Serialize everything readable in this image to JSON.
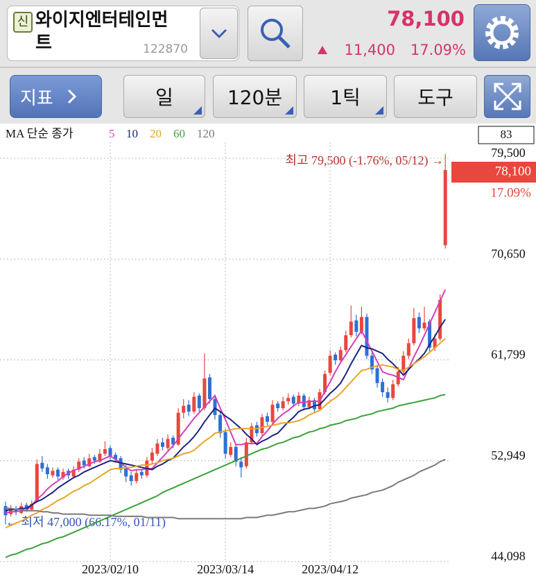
{
  "header": {
    "badge": "신",
    "name": "와이지엔터테인먼트",
    "code": "122870",
    "price": "78,100",
    "change": "11,400",
    "change_rate": "17.09%"
  },
  "toolbar": {
    "indicator": "지표",
    "period": "일",
    "minute": "120분",
    "tick": "1틱",
    "tools": "도구"
  },
  "chart_data": {
    "type": "candlestick",
    "legend_title": "MA 단순 종가",
    "high_annotation": "최고 79,500 (-1.76%, 05/12) →",
    "low_annotation": "← 최저 47,000 (66.17%, 01/11)",
    "top_box_label": "83",
    "current_price_label": "78,100",
    "current_change_label": "17.09%",
    "up_color": "#e8473e",
    "down_color": "#2e6fd6",
    "ylim": [
      44098,
      79500
    ],
    "yticks": [
      {
        "value": 44098,
        "label": "44,098"
      },
      {
        "value": 52949,
        "label": "52,949"
      },
      {
        "value": 61799,
        "label": "61,799"
      },
      {
        "value": 70650,
        "label": "70,650"
      },
      {
        "value": 79500,
        "label": "79,500"
      }
    ],
    "grid": true,
    "categories": [
      null,
      null,
      null,
      null,
      null,
      null,
      null,
      null,
      null,
      null,
      null,
      null,
      null,
      null,
      null,
      null,
      null,
      null,
      null,
      null,
      "2023/02/10",
      null,
      null,
      null,
      null,
      null,
      null,
      null,
      null,
      null,
      null,
      null,
      null,
      null,
      null,
      null,
      null,
      null,
      null,
      null,
      null,
      null,
      "2023/03/14",
      null,
      null,
      null,
      null,
      null,
      null,
      null,
      null,
      null,
      null,
      null,
      null,
      null,
      null,
      null,
      null,
      null,
      null,
      null,
      "2023/04/12",
      null,
      null,
      null,
      null,
      null,
      null,
      null,
      null,
      null,
      null,
      null,
      null,
      null,
      null,
      null,
      null,
      null,
      null,
      null,
      null,
      null,
      null
    ],
    "open": [
      48600,
      47900,
      48300,
      48000,
      48700,
      48300,
      49000,
      52400,
      52000,
      51300,
      51800,
      51100,
      51700,
      51200,
      51800,
      52600,
      52100,
      52900,
      52500,
      53200,
      53700,
      53100,
      52800,
      51900,
      51300,
      50800,
      51600,
      51300,
      52600,
      53200,
      54200,
      53700,
      54600,
      54000,
      56800,
      57500,
      56900,
      58300,
      57200,
      59900,
      58000,
      56600,
      55100,
      53100,
      53800,
      52500,
      52100,
      54200,
      55700,
      55000,
      56500,
      56000,
      57600,
      57200,
      57800,
      58200,
      57600,
      58300,
      57300,
      57900,
      57100,
      58600,
      60300,
      61900,
      61400,
      62300,
      63600,
      64900,
      63900,
      65200,
      61800,
      60700,
      59500,
      58600,
      58100,
      59300,
      60400,
      61800,
      62900,
      65200,
      64200,
      64800,
      62500,
      63300,
      71500
    ],
    "high": [
      49000,
      48700,
      48600,
      48900,
      48900,
      49100,
      52700,
      53000,
      52300,
      52000,
      52000,
      51900,
      51900,
      52100,
      52800,
      52900,
      53200,
      53100,
      53600,
      54300,
      53900,
      53300,
      53000,
      52200,
      51600,
      51800,
      51800,
      52900,
      53700,
      54500,
      54600,
      54900,
      54800,
      57200,
      58000,
      57900,
      58600,
      58500,
      62000,
      60200,
      58300,
      56900,
      55400,
      54200,
      54000,
      52900,
      54600,
      55900,
      56000,
      56700,
      56800,
      57900,
      57800,
      58200,
      58500,
      58400,
      58600,
      58500,
      58200,
      58100,
      58900,
      60500,
      62300,
      62100,
      62600,
      64000,
      66200,
      65400,
      66100,
      65500,
      62100,
      61000,
      59800,
      59000,
      59700,
      60800,
      62200,
      63300,
      66000,
      65600,
      66100,
      65000,
      63700,
      67200,
      79500
    ],
    "low": [
      47000,
      47700,
      47800,
      47900,
      48100,
      48200,
      48900,
      51600,
      51000,
      51100,
      50900,
      50900,
      51000,
      51000,
      51600,
      51900,
      52000,
      52300,
      52400,
      53000,
      52700,
      52400,
      51500,
      50700,
      50400,
      50600,
      51000,
      51100,
      52300,
      53000,
      53500,
      53500,
      53700,
      53900,
      56300,
      56500,
      56700,
      56900,
      57000,
      57600,
      56200,
      54600,
      52800,
      52900,
      52100,
      51100,
      51900,
      54000,
      54700,
      54800,
      55700,
      55800,
      56900,
      57000,
      57500,
      57300,
      57400,
      57000,
      57100,
      56800,
      57000,
      58400,
      60100,
      61000,
      61200,
      62100,
      63400,
      63500,
      63700,
      61500,
      60200,
      59000,
      58200,
      57700,
      57900,
      59100,
      60200,
      61500,
      62700,
      63800,
      64000,
      62100,
      62200,
      63100,
      71200
    ],
    "close": [
      47800,
      48300,
      48100,
      48600,
      48400,
      48800,
      52300,
      51900,
      51400,
      51700,
      51200,
      51600,
      51300,
      51800,
      52500,
      52200,
      52800,
      52600,
      53200,
      53600,
      53000,
      52700,
      51800,
      51200,
      50800,
      51500,
      51300,
      52600,
      53300,
      54100,
      53800,
      54500,
      54000,
      56800,
      57400,
      56900,
      58200,
      57200,
      59800,
      58000,
      56600,
      55000,
      53200,
      53800,
      52500,
      52000,
      54200,
      55600,
      55000,
      56400,
      56000,
      57500,
      57200,
      57800,
      58100,
      57600,
      58300,
      57300,
      57900,
      57100,
      58600,
      60200,
      61800,
      61400,
      62300,
      63600,
      64800,
      63900,
      65200,
      61800,
      60600,
      59400,
      58600,
      58100,
      59300,
      60400,
      61800,
      62900,
      65100,
      64200,
      64700,
      62500,
      63300,
      66700,
      78100
    ],
    "series": [
      {
        "name": "5",
        "color": "#d63eb8",
        "values": [
          48000,
          48100,
          48100,
          48200,
          48200,
          48700,
          49200,
          49600,
          50100,
          50500,
          50800,
          51200,
          51500,
          51700,
          51900,
          52100,
          52300,
          52500,
          52600,
          52800,
          53000,
          52700,
          52400,
          52000,
          51700,
          51800,
          51800,
          51900,
          51900,
          52400,
          52900,
          53400,
          53900,
          54500,
          55100,
          55700,
          56300,
          56800,
          57300,
          57800,
          58300,
          57200,
          56200,
          55100,
          54000,
          54000,
          54100,
          54100,
          54100,
          54700,
          55200,
          55800,
          56300,
          56700,
          57000,
          57400,
          57700,
          57700,
          57800,
          57800,
          57800,
          58700,
          59500,
          60400,
          61200,
          61900,
          62600,
          63300,
          64000,
          63100,
          62200,
          61300,
          60400,
          60200,
          60100,
          59900,
          59700,
          60700,
          61700,
          62600,
          63600,
          64600,
          65600,
          66600,
          67600
        ]
      },
      {
        "name": "10",
        "color": "#1a237e",
        "values": [
          48200,
          48300,
          48300,
          48400,
          48400,
          48700,
          49000,
          49200,
          49500,
          49800,
          50200,
          50500,
          50800,
          51100,
          51300,
          51600,
          51800,
          52000,
          52200,
          52400,
          52600,
          52500,
          52400,
          52300,
          52200,
          52100,
          52000,
          51900,
          51800,
          52100,
          52300,
          52600,
          52800,
          53300,
          53800,
          54200,
          54700,
          55300,
          56000,
          56600,
          57200,
          56900,
          56500,
          56200,
          55800,
          55400,
          54900,
          54500,
          54000,
          54300,
          54500,
          54800,
          55000,
          55500,
          56000,
          56400,
          56900,
          57100,
          57200,
          57400,
          57500,
          58000,
          58500,
          58900,
          59400,
          60200,
          61100,
          61900,
          62700,
          62500,
          62400,
          62200,
          62000,
          61500,
          61100,
          60600,
          60100,
          60600,
          61100,
          61500,
          62000,
          62800,
          63500,
          64300,
          65000
        ]
      },
      {
        "name": "20",
        "color": "#e8a526",
        "values": [
          46700,
          46900,
          47100,
          47300,
          47500,
          47800,
          48000,
          48300,
          48500,
          48800,
          49100,
          49300,
          49600,
          49900,
          50100,
          50400,
          50600,
          50900,
          51200,
          51500,
          51800,
          51900,
          51900,
          52000,
          52000,
          52100,
          52200,
          52200,
          52300,
          52400,
          52600,
          52700,
          52800,
          53000,
          53200,
          53300,
          53500,
          53900,
          54300,
          54600,
          55000,
          55100,
          55200,
          55300,
          55400,
          55400,
          55400,
          55400,
          55400,
          55500,
          55600,
          55700,
          55800,
          55900,
          55900,
          56000,
          56100,
          56300,
          56600,
          56800,
          57000,
          57400,
          57800,
          58100,
          58500,
          59000,
          59500,
          60000,
          60500,
          60600,
          60800,
          60900,
          61000,
          60900,
          60800,
          60600,
          60500,
          60800,
          61100,
          61400,
          61700,
          62100,
          62500,
          62900,
          63300
        ]
      },
      {
        "name": "60",
        "color": "#3aa23a",
        "values": [
          44100,
          44300,
          44400,
          44600,
          44800,
          44900,
          45100,
          45300,
          45400,
          45600,
          45800,
          45900,
          46100,
          46300,
          46500,
          46700,
          46900,
          47100,
          47300,
          47500,
          47700,
          47900,
          48100,
          48300,
          48500,
          48700,
          48900,
          49100,
          49300,
          49500,
          49800,
          50000,
          50200,
          50400,
          50600,
          50800,
          51000,
          51200,
          51400,
          51600,
          51800,
          52000,
          52200,
          52400,
          52600,
          52800,
          53000,
          53200,
          53400,
          53600,
          53700,
          53900,
          54100,
          54200,
          54400,
          54600,
          54700,
          54900,
          55100,
          55200,
          55400,
          55500,
          55700,
          55800,
          55900,
          56100,
          56200,
          56300,
          56500,
          56600,
          56700,
          56900,
          57000,
          57100,
          57200,
          57400,
          57500,
          57600,
          57700,
          57800,
          57900,
          58000,
          58100,
          58300,
          58400
        ]
      },
      {
        "name": "120",
        "color": "#7a7a7a",
        "values": [
          48400,
          48400,
          48300,
          48300,
          48200,
          48200,
          48200,
          48100,
          48100,
          48000,
          48000,
          47900,
          47900,
          47900,
          47900,
          47900,
          47800,
          47800,
          47800,
          47800,
          47800,
          47700,
          47700,
          47700,
          47700,
          47700,
          47700,
          47600,
          47600,
          47600,
          47600,
          47600,
          47600,
          47500,
          47500,
          47500,
          47500,
          47500,
          47500,
          47500,
          47500,
          47500,
          47500,
          47500,
          47500,
          47500,
          47600,
          47600,
          47600,
          47700,
          47800,
          47800,
          47900,
          48000,
          48100,
          48100,
          48200,
          48300,
          48400,
          48400,
          48500,
          48600,
          48800,
          48900,
          49000,
          49100,
          49300,
          49400,
          49500,
          49600,
          49800,
          49900,
          50000,
          50200,
          50400,
          50700,
          50900,
          51100,
          51300,
          51600,
          51800,
          52000,
          52200,
          52500,
          52700
        ]
      }
    ]
  }
}
